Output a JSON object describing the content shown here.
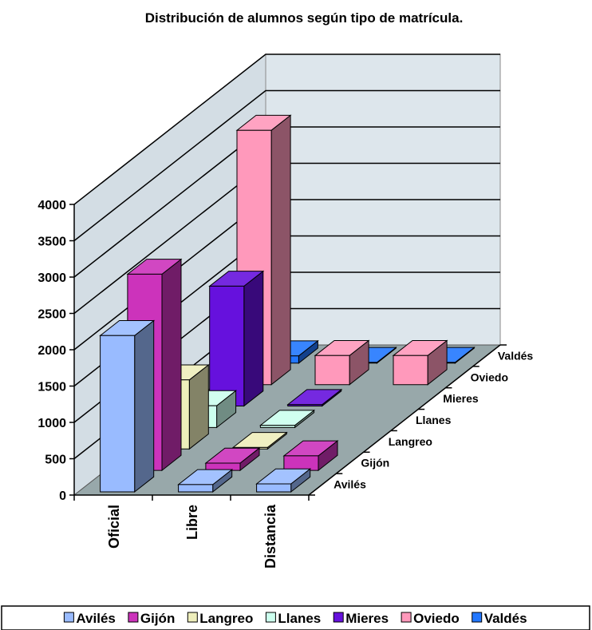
{
  "chart_data": {
    "type": "bar",
    "subtype": "3d-column",
    "title": "Distribución de alumnos según tipo de matrícula.",
    "categories": [
      "Oficial",
      "Libre",
      "Distancia"
    ],
    "y_ticks": [
      "0",
      "500",
      "1000",
      "1500",
      "2000",
      "2500",
      "3000",
      "3500",
      "4000"
    ],
    "ylim": [
      0,
      4000
    ],
    "grid": true,
    "legend_position": "bottom",
    "series": [
      {
        "name": "Avilés",
        "color": "#99bbff",
        "values": [
          2150,
          100,
          110
        ]
      },
      {
        "name": "Gijón",
        "color": "#cc33bb",
        "values": [
          2700,
          100,
          200
        ]
      },
      {
        "name": "Langreo",
        "color": "#eeeebb",
        "values": [
          950,
          20,
          0
        ]
      },
      {
        "name": "Llanes",
        "color": "#ccffee",
        "values": [
          300,
          30,
          0
        ]
      },
      {
        "name": "Mieres",
        "color": "#6611dd",
        "values": [
          1650,
          20,
          0
        ]
      },
      {
        "name": "Oviedo",
        "color": "#ff99bb",
        "values": [
          3500,
          400,
          400
        ]
      },
      {
        "name": "Valdés",
        "color": "#2277ff",
        "values": [
          100,
          10,
          10
        ]
      }
    ]
  }
}
